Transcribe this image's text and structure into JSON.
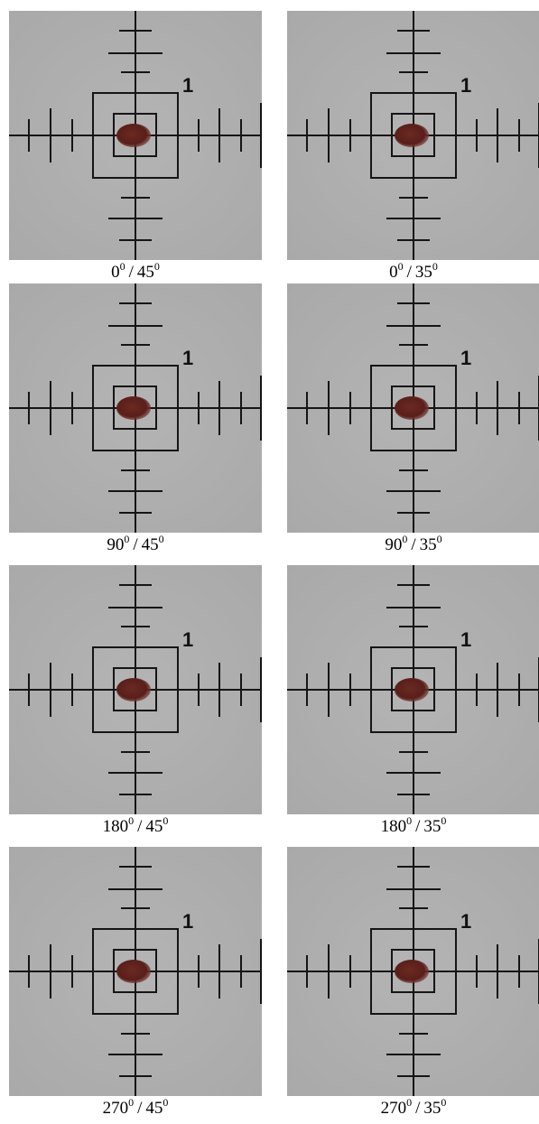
{
  "panels": [
    {
      "rotation": "0",
      "rotation_sup": "0",
      "separator": "/",
      "tilt": "45",
      "tilt_sup": "0",
      "marker": "1"
    },
    {
      "rotation": "0",
      "rotation_sup": "0",
      "separator": "/",
      "tilt": "35",
      "tilt_sup": "0",
      "marker": "1"
    },
    {
      "rotation": "90",
      "rotation_sup": "0",
      "separator": "/",
      "tilt": "45",
      "tilt_sup": "0",
      "marker": "1"
    },
    {
      "rotation": "90",
      "rotation_sup": "0",
      "separator": "/",
      "tilt": "35",
      "tilt_sup": "0",
      "marker": "1"
    },
    {
      "rotation": "180",
      "rotation_sup": "0",
      "separator": "/",
      "tilt": "45",
      "tilt_sup": "0",
      "marker": "1"
    },
    {
      "rotation": "180",
      "rotation_sup": "0",
      "separator": "/",
      "tilt": "35",
      "tilt_sup": "0",
      "marker": "1"
    },
    {
      "rotation": "270",
      "rotation_sup": "0",
      "separator": "/",
      "tilt": "45",
      "tilt_sup": "0",
      "marker": "1"
    },
    {
      "rotation": "270",
      "rotation_sup": "0",
      "separator": "/",
      "tilt": "35",
      "tilt_sup": "0",
      "marker": "1"
    }
  ]
}
